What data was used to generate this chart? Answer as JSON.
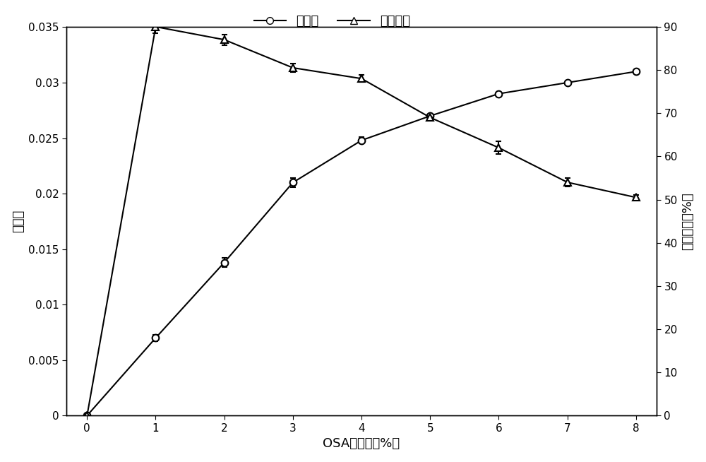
{
  "x": [
    0,
    1,
    2,
    3,
    4,
    5,
    6,
    7,
    8
  ],
  "ds_values": [
    0.0,
    0.007,
    0.0138,
    0.021,
    0.0248,
    0.027,
    0.029,
    0.03,
    0.031
  ],
  "ds_errors": [
    0.0,
    0.0003,
    0.0004,
    0.0004,
    0.0003,
    0.0,
    0.0,
    0.0,
    0.0
  ],
  "re_values": [
    0.0,
    90.0,
    87.0,
    80.5,
    78.0,
    69.0,
    62.0,
    54.0,
    50.5
  ],
  "re_errors": [
    0.0,
    1.5,
    1.2,
    1.0,
    0.8,
    0.0,
    1.5,
    1.0,
    0.5
  ],
  "xlabel": "OSA添加量（%）",
  "ylabel_left": "取代度",
  "ylabel_right": "反应效率（%）",
  "legend_ds": "取代度",
  "legend_re": "反应效率",
  "ylim_left": [
    0,
    0.035
  ],
  "ylim_right": [
    0,
    90
  ],
  "yticks_left": [
    0,
    0.005,
    0.01,
    0.015,
    0.02,
    0.025,
    0.03,
    0.035
  ],
  "yticks_right": [
    0,
    10,
    20,
    30,
    40,
    50,
    60,
    70,
    80,
    90
  ],
  "xticks": [
    0,
    1,
    2,
    3,
    4,
    5,
    6,
    7,
    8
  ],
  "line_color": "#000000",
  "bg_color": "#ffffff",
  "figsize": [
    10.0,
    6.54
  ]
}
